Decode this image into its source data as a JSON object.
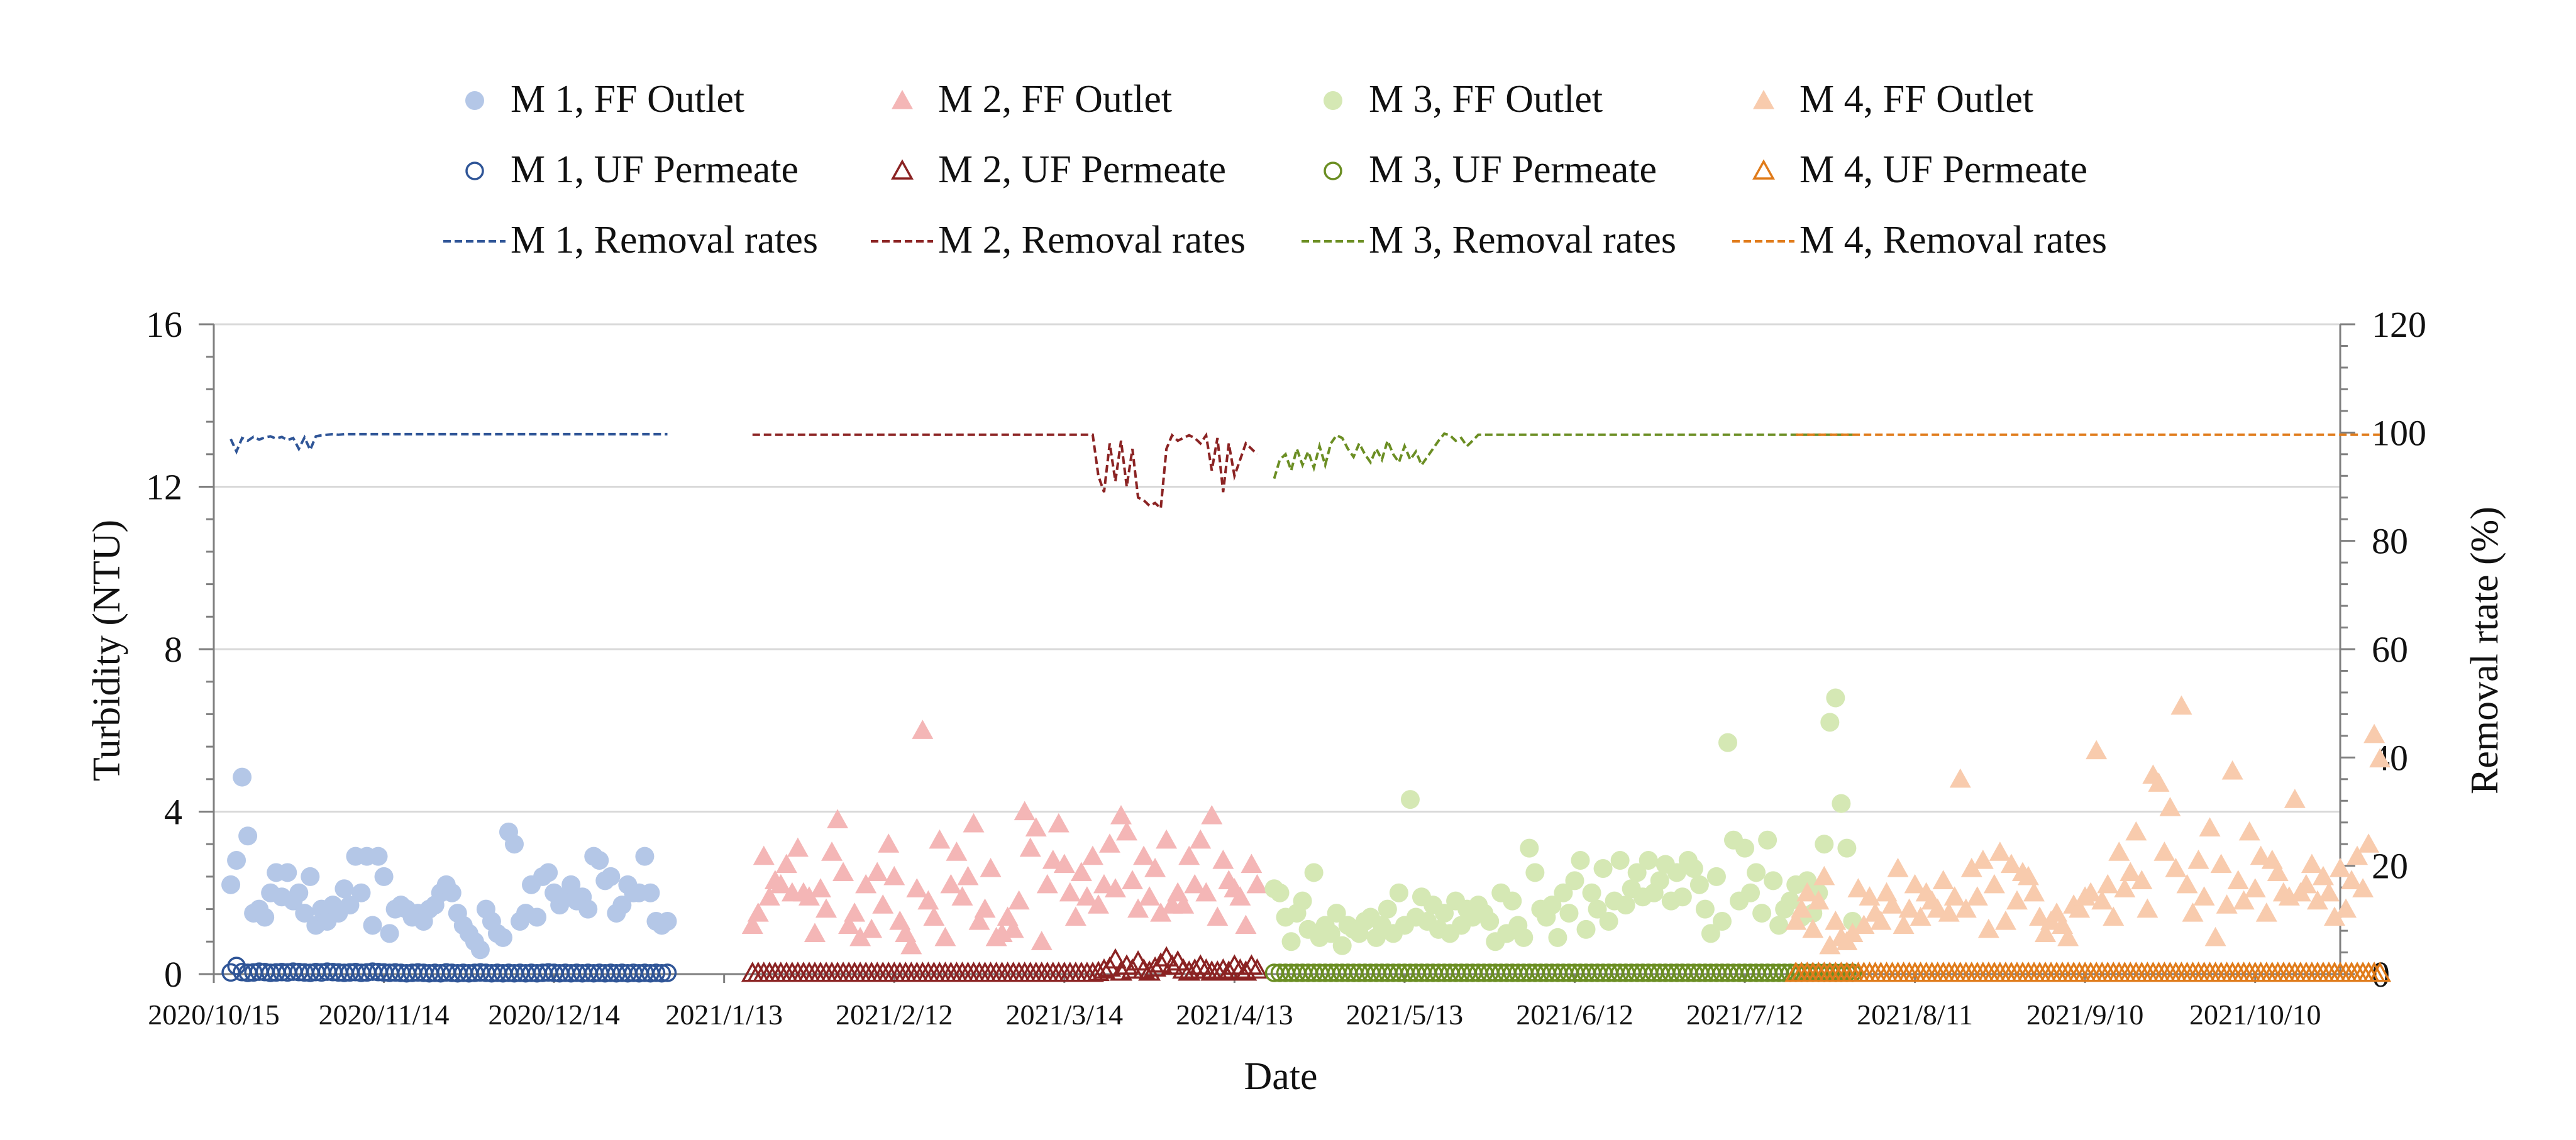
{
  "chart_data": {
    "type": "scatter",
    "title": "",
    "xlabel": "Date",
    "ylabel": "Turbidity (NTU)",
    "y2label": "Removal rtate (%)",
    "ylim": [
      0,
      16
    ],
    "y2lim": [
      0,
      120
    ],
    "yticks": [
      "0",
      "4",
      "8",
      "12",
      "16"
    ],
    "y2ticks": [
      "0",
      "20",
      "40",
      "60",
      "80",
      "100",
      "120"
    ],
    "x_range": [
      "2020/10/15",
      "2021/10/25"
    ],
    "x_tick_labels": [
      "2020/10/15",
      "2020/11/14",
      "2020/12/14",
      "2021/1/13",
      "2021/2/12",
      "2021/3/14",
      "2021/4/13",
      "2021/5/13",
      "2021/6/12",
      "2021/7/12",
      "2021/8/11",
      "2021/9/10",
      "2021/10/10"
    ],
    "grid": true,
    "legend_position": "top",
    "legend": [
      "M 1, FF Outlet",
      "M 2, FF Outlet",
      "M 3, FF Outlet",
      "M 4, FF Outlet",
      "M 1, UF Permeate",
      "M 2, UF Permeate",
      "M 3, UF Permeate",
      "M 4, UF Permeate",
      "M 1, Removal rates",
      "M 2, Removal rates",
      "M 3, Removal rates",
      "M 4, Removal rates"
    ],
    "colors": {
      "m1_ff": "#b4c7e7",
      "m1_uf": "#2f5597",
      "m1_rr": "#2f5597",
      "m2_ff": "#f4b6b6",
      "m2_uf": "#8b2323",
      "m2_rr": "#8b2323",
      "m3_ff": "#d5e8b4",
      "m3_uf": "#6b8e23",
      "m3_rr": "#6b8e23",
      "m4_ff": "#f8cbad",
      "m4_uf": "#e07b1a",
      "m4_rr": "#e07b1a",
      "grid": "#d9d9d9",
      "axis": "#7f7f7f"
    },
    "modules": [
      {
        "name": "M 1",
        "start_day": 3,
        "step_days": 1,
        "ff_outlet": [
          2.2,
          2.8,
          4.85,
          3.4,
          1.5,
          1.6,
          1.4,
          2.0,
          2.5,
          1.9,
          2.5,
          1.8,
          2.0,
          1.5,
          2.4,
          1.2,
          1.6,
          1.3,
          1.7,
          1.5,
          2.1,
          1.7,
          2.9,
          2.0,
          2.9,
          1.2,
          2.9,
          2.4,
          1.0,
          1.6,
          1.7,
          1.6,
          1.4,
          1.5,
          1.3,
          1.6,
          1.7,
          2.0,
          2.2,
          2.0,
          1.5,
          1.2,
          1.0,
          0.8,
          0.6,
          1.6,
          1.3,
          1.0,
          0.9,
          3.5,
          3.2,
          1.3,
          1.5,
          2.2,
          1.4,
          2.4,
          2.5,
          2.0,
          1.7,
          1.9,
          2.2,
          1.8,
          1.9,
          1.6,
          2.9,
          2.8,
          2.3,
          2.4,
          1.5,
          1.7,
          2.2,
          2.0,
          2.0,
          2.9,
          2.0,
          1.3,
          1.2,
          1.3
        ],
        "uf_permeate": [
          0.04,
          0.2,
          0.05,
          0.03,
          0.04,
          0.06,
          0.05,
          0.03,
          0.04,
          0.05,
          0.04,
          0.06,
          0.05,
          0.04,
          0.03,
          0.05,
          0.04,
          0.06,
          0.05,
          0.04,
          0.03,
          0.04,
          0.05,
          0.03,
          0.04,
          0.06,
          0.05,
          0.04,
          0.03,
          0.04,
          0.03,
          0.02,
          0.03,
          0.04,
          0.03,
          0.02,
          0.03,
          0.02,
          0.04,
          0.03,
          0.02,
          0.03,
          0.02,
          0.03,
          0.04,
          0.03,
          0.02,
          0.03,
          0.02,
          0.03,
          0.02,
          0.03,
          0.02,
          0.03,
          0.02,
          0.03,
          0.04,
          0.03,
          0.02,
          0.03,
          0.02,
          0.03,
          0.02,
          0.03,
          0.02,
          0.03,
          0.02,
          0.03,
          0.02,
          0.03,
          0.02,
          0.03,
          0.02,
          0.03,
          0.02,
          0.03,
          0.02,
          0.03
        ],
        "removal_rate": [
          98.8,
          96.5,
          99.0,
          98.5,
          99.2,
          98.7,
          99.1,
          99.3,
          98.9,
          99.2,
          98.6,
          99.0,
          97.0,
          99.1,
          96.8,
          99.3,
          99.5,
          99.6,
          99.7,
          99.6,
          99.7,
          99.7,
          99.7,
          99.7,
          99.7,
          99.7,
          99.7,
          99.7,
          99.7,
          99.7,
          99.7,
          99.7,
          99.7,
          99.7,
          99.7,
          99.7,
          99.7,
          99.7,
          99.7,
          99.7,
          99.7,
          99.7,
          99.7,
          99.7,
          99.7,
          99.7,
          99.7,
          99.7,
          99.7,
          99.7,
          99.7,
          99.7,
          99.7,
          99.7,
          99.7,
          99.7,
          99.7,
          99.7,
          99.7,
          99.7,
          99.7,
          99.7,
          99.7,
          99.7,
          99.7,
          99.7,
          99.7,
          99.7,
          99.7,
          99.7,
          99.7,
          99.7,
          99.7,
          99.7,
          99.7,
          99.7,
          99.7,
          99.7
        ]
      },
      {
        "name": "M 2",
        "start_day": 95,
        "step_days": 1,
        "ff_outlet": [
          1.2,
          1.5,
          2.9,
          1.9,
          2.3,
          2.2,
          2.7,
          2.0,
          3.1,
          2.0,
          1.9,
          1.0,
          2.1,
          1.6,
          3.0,
          3.8,
          2.5,
          1.2,
          1.5,
          0.9,
          2.2,
          1.1,
          2.5,
          1.7,
          3.2,
          2.4,
          1.3,
          1.0,
          0.7,
          2.1,
          6.0,
          1.8,
          1.4,
          3.3,
          0.9,
          2.2,
          3.0,
          1.9,
          2.4,
          3.7,
          1.3,
          1.6,
          2.6,
          0.9,
          1.0,
          1.4,
          1.1,
          1.8,
          4.0,
          3.1,
          3.6,
          0.8,
          2.2,
          2.8,
          3.7,
          2.7,
          2.0,
          1.4,
          2.5,
          1.9,
          2.9,
          1.7,
          2.2,
          3.2,
          2.1,
          3.9,
          3.5,
          2.3,
          1.6,
          2.9,
          1.9,
          2.6,
          1.5,
          3.3,
          1.7,
          2.0,
          1.7,
          2.9,
          2.2,
          3.3,
          2.0,
          3.9,
          1.4,
          2.8,
          2.3,
          2.1,
          1.9,
          1.2,
          2.7,
          2.2
        ],
        "uf_permeate": [
          0.02,
          0.02,
          0.02,
          0.02,
          0.02,
          0.02,
          0.02,
          0.02,
          0.02,
          0.02,
          0.02,
          0.02,
          0.02,
          0.02,
          0.02,
          0.02,
          0.02,
          0.02,
          0.02,
          0.02,
          0.02,
          0.02,
          0.02,
          0.02,
          0.02,
          0.02,
          0.02,
          0.02,
          0.02,
          0.02,
          0.02,
          0.02,
          0.02,
          0.02,
          0.02,
          0.02,
          0.02,
          0.02,
          0.02,
          0.02,
          0.02,
          0.02,
          0.02,
          0.02,
          0.02,
          0.02,
          0.02,
          0.02,
          0.02,
          0.02,
          0.02,
          0.02,
          0.02,
          0.02,
          0.02,
          0.02,
          0.02,
          0.02,
          0.02,
          0.02,
          0.02,
          0.04,
          0.1,
          0.15,
          0.35,
          0.05,
          0.2,
          0.1,
          0.3,
          0.1,
          0.05,
          0.15,
          0.25,
          0.4,
          0.2,
          0.3,
          0.1,
          0.05,
          0.1,
          0.2,
          0.1,
          0.05,
          0.05,
          0.1,
          0.05,
          0.2,
          0.1,
          0.05,
          0.2,
          0.1
        ],
        "removal_rate": [
          99.6,
          99.6,
          99.6,
          99.6,
          99.6,
          99.6,
          99.6,
          99.6,
          99.6,
          99.6,
          99.6,
          99.6,
          99.6,
          99.6,
          99.6,
          99.6,
          99.6,
          99.6,
          99.6,
          99.6,
          99.6,
          99.6,
          99.6,
          99.6,
          99.6,
          99.6,
          99.6,
          99.6,
          99.6,
          99.6,
          99.6,
          99.6,
          99.6,
          99.6,
          99.6,
          99.6,
          99.6,
          99.6,
          99.6,
          99.6,
          99.6,
          99.6,
          99.6,
          99.6,
          99.6,
          99.6,
          99.6,
          99.6,
          99.6,
          99.6,
          99.6,
          99.6,
          99.6,
          99.6,
          99.6,
          99.6,
          99.6,
          99.6,
          99.6,
          99.6,
          99.6,
          92.0,
          89.0,
          98.0,
          91.0,
          98.5,
          90.0,
          97.0,
          88.0,
          87.5,
          86.5,
          87.0,
          86.0,
          97.0,
          99.5,
          98.5,
          99.0,
          99.5,
          99.0,
          98.0,
          99.5,
          93.0,
          99.0,
          89.0,
          98.0,
          92.0,
          95.0,
          98.0,
          97.0,
          96.0
        ]
      },
      {
        "name": "M 3",
        "start_day": 187,
        "step_days": 1,
        "ff_outlet": [
          2.1,
          2.0,
          1.4,
          0.8,
          1.5,
          1.8,
          1.1,
          2.5,
          0.9,
          1.2,
          1.0,
          1.5,
          0.7,
          1.2,
          1.1,
          1.0,
          1.3,
          1.4,
          0.9,
          1.2,
          1.6,
          1.0,
          2.0,
          1.2,
          4.3,
          1.4,
          1.9,
          1.3,
          1.7,
          1.1,
          1.5,
          1.0,
          1.8,
          1.2,
          1.6,
          1.4,
          1.7,
          1.5,
          1.3,
          0.8,
          2.0,
          1.0,
          1.8,
          1.2,
          0.9,
          3.1,
          2.5,
          1.6,
          1.4,
          1.7,
          0.9,
          2.0,
          1.5,
          2.3,
          2.8,
          1.1,
          2.0,
          1.6,
          2.6,
          1.3,
          1.8,
          2.8,
          1.7,
          2.1,
          2.5,
          1.9,
          2.8,
          2.0,
          2.3,
          2.7,
          1.8,
          2.5,
          1.9,
          2.8,
          2.6,
          2.2,
          1.6,
          1.0,
          2.4,
          1.3,
          5.7,
          3.3,
          1.8,
          3.1,
          2.0,
          2.5,
          1.5,
          3.3,
          2.3,
          1.2,
          1.6,
          1.8,
          2.2,
          1.4,
          2.3,
          1.5,
          2.0,
          3.2,
          6.2,
          6.8,
          4.2,
          3.1,
          1.3
        ],
        "uf_permeate": [
          0.03,
          0.03,
          0.03,
          0.03,
          0.03,
          0.03,
          0.03,
          0.03,
          0.03,
          0.03,
          0.03,
          0.03,
          0.03,
          0.03,
          0.03,
          0.03,
          0.03,
          0.03,
          0.03,
          0.03,
          0.03,
          0.03,
          0.03,
          0.03,
          0.03,
          0.03,
          0.03,
          0.03,
          0.03,
          0.03,
          0.03,
          0.03,
          0.03,
          0.03,
          0.03,
          0.03,
          0.03,
          0.03,
          0.03,
          0.03,
          0.03,
          0.03,
          0.03,
          0.03,
          0.03,
          0.03,
          0.03,
          0.03,
          0.03,
          0.03,
          0.03,
          0.03,
          0.03,
          0.03,
          0.03,
          0.03,
          0.03,
          0.03,
          0.03,
          0.03,
          0.03,
          0.03,
          0.03,
          0.03,
          0.03,
          0.03,
          0.03,
          0.03,
          0.03,
          0.03,
          0.03,
          0.03,
          0.03,
          0.03,
          0.03,
          0.03,
          0.03,
          0.03,
          0.03,
          0.03,
          0.03,
          0.03,
          0.03,
          0.03,
          0.03,
          0.03,
          0.03,
          0.03,
          0.03,
          0.03,
          0.03,
          0.03,
          0.03,
          0.03,
          0.03,
          0.03,
          0.03,
          0.03,
          0.03,
          0.03,
          0.03,
          0.03,
          0.03
        ],
        "removal_rate": [
          91.5,
          95.0,
          96.0,
          93.0,
          97.0,
          94.0,
          96.5,
          93.5,
          97.5,
          94.0,
          98.0,
          99.5,
          99.0,
          97.0,
          95.5,
          98.0,
          96.0,
          94.5,
          97.0,
          95.0,
          98.5,
          96.0,
          94.5,
          97.5,
          95.0,
          96.5,
          94.0,
          95.5,
          97.0,
          98.5,
          99.8,
          99.5,
          98.5,
          99.0,
          97.5,
          98.5,
          99.6,
          99.6,
          99.6,
          99.6,
          99.6,
          99.6,
          99.6,
          99.6,
          99.6,
          99.6,
          99.6,
          99.6,
          99.6,
          99.6,
          99.6,
          99.6,
          99.6,
          99.6,
          99.6,
          99.6,
          99.6,
          99.6,
          99.6,
          99.6,
          99.6,
          99.6,
          99.6,
          99.6,
          99.6,
          99.6,
          99.6,
          99.6,
          99.6,
          99.6,
          99.6,
          99.6,
          99.6,
          99.6,
          99.6,
          99.6,
          99.6,
          99.6,
          99.6,
          99.6,
          99.6,
          99.6,
          99.6,
          99.6,
          99.6,
          99.6,
          99.6,
          99.6,
          99.6,
          99.6,
          99.6,
          99.6,
          99.6,
          99.6,
          99.6,
          99.6,
          99.6,
          99.6,
          99.6,
          99.6,
          99.6,
          99.6,
          99.6
        ]
      },
      {
        "name": "M 4",
        "start_day": 279,
        "step_days": 1,
        "ff_outlet": [
          1.3,
          1.6,
          2.0,
          1.1,
          1.8,
          2.4,
          0.7,
          1.3,
          0.9,
          0.8,
          1.0,
          2.1,
          1.2,
          1.9,
          1.5,
          1.3,
          2.0,
          1.7,
          2.6,
          1.2,
          1.6,
          2.2,
          1.4,
          2.0,
          1.8,
          1.6,
          2.3,
          1.5,
          1.9,
          4.8,
          1.6,
          2.6,
          1.9,
          2.8,
          1.1,
          2.2,
          3.0,
          1.3,
          2.7,
          1.8,
          2.5,
          2.4,
          2.0,
          1.4,
          1.0,
          1.3,
          1.5,
          1.2,
          0.9,
          1.7,
          1.6,
          1.9,
          2.0,
          5.5,
          1.8,
          2.2,
          1.4,
          3.0,
          2.1,
          2.5,
          3.5,
          2.3,
          1.6,
          4.9,
          4.7,
          3.0,
          4.1,
          2.6,
          6.6,
          2.2,
          1.5,
          2.8,
          1.9,
          3.6,
          0.9,
          2.7,
          1.7,
          5.0,
          2.3,
          1.8,
          3.5,
          2.1,
          2.9,
          1.5,
          2.8,
          2.5,
          2.0,
          1.9,
          4.3,
          2.0,
          2.2,
          2.7,
          1.8,
          2.4,
          2.0,
          1.4,
          2.6,
          1.6,
          2.3,
          2.9,
          2.1,
          3.2,
          5.9,
          5.3
        ],
        "uf_permeate": [
          0.02,
          0.02,
          0.02,
          0.02,
          0.02,
          0.02,
          0.02,
          0.02,
          0.02,
          0.02,
          0.02,
          0.02,
          0.02,
          0.02,
          0.02,
          0.02,
          0.02,
          0.02,
          0.02,
          0.02,
          0.02,
          0.02,
          0.02,
          0.02,
          0.02,
          0.02,
          0.02,
          0.02,
          0.02,
          0.02,
          0.02,
          0.02,
          0.02,
          0.02,
          0.02,
          0.02,
          0.02,
          0.02,
          0.02,
          0.02,
          0.02,
          0.02,
          0.02,
          0.02,
          0.02,
          0.02,
          0.02,
          0.02,
          0.02,
          0.02,
          0.02,
          0.02,
          0.02,
          0.02,
          0.02,
          0.02,
          0.02,
          0.02,
          0.02,
          0.02,
          0.02,
          0.02,
          0.02,
          0.02,
          0.02,
          0.02,
          0.02,
          0.02,
          0.02,
          0.02,
          0.02,
          0.02,
          0.02,
          0.02,
          0.02,
          0.02,
          0.02,
          0.02,
          0.02,
          0.02,
          0.02,
          0.02,
          0.02,
          0.02,
          0.02,
          0.02,
          0.02,
          0.02,
          0.02,
          0.02,
          0.02,
          0.02,
          0.02,
          0.02,
          0.02,
          0.02,
          0.02,
          0.02,
          0.02,
          0.02,
          0.02,
          0.02,
          0.02,
          0.02
        ],
        "removal_rate": [
          99.6,
          99.6,
          99.6,
          99.6,
          99.6,
          99.6,
          99.6,
          99.6,
          99.6,
          99.6,
          99.6,
          99.6,
          99.6,
          99.6,
          99.6,
          99.6,
          99.6,
          99.6,
          99.6,
          99.6,
          99.6,
          99.6,
          99.6,
          99.6,
          99.6,
          99.6,
          99.6,
          99.6,
          99.6,
          99.6,
          99.6,
          99.6,
          99.6,
          99.6,
          99.6,
          99.6,
          99.6,
          99.6,
          99.6,
          99.6,
          99.6,
          99.6,
          99.6,
          99.6,
          99.6,
          99.6,
          99.6,
          99.6,
          99.6,
          99.6,
          99.6,
          99.6,
          99.6,
          99.6,
          99.6,
          99.6,
          99.6,
          99.6,
          99.6,
          99.6,
          99.6,
          99.6,
          99.6,
          99.6,
          99.6,
          99.6,
          99.6,
          99.6,
          99.6,
          99.6,
          99.6,
          99.6,
          99.6,
          99.6,
          99.6,
          99.6,
          99.6,
          99.6,
          99.6,
          99.6,
          99.6,
          99.6,
          99.6,
          99.6,
          99.6,
          99.6,
          99.6,
          99.6,
          99.6,
          99.6,
          99.6,
          99.6,
          99.6,
          99.6,
          99.6,
          99.6,
          99.6,
          99.6,
          99.6,
          99.6,
          99.6,
          99.6,
          99.6,
          99.6
        ]
      }
    ]
  }
}
